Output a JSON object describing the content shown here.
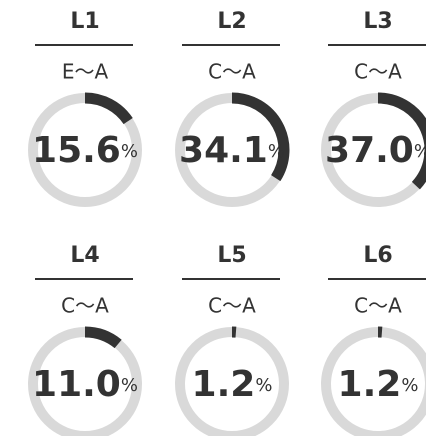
{
  "gauges": [
    {
      "label": "L1",
      "range": "E～A",
      "value": 15.6,
      "unit": "%"
    },
    {
      "label": "L2",
      "range": "C～A",
      "value": 34.1,
      "unit": "%"
    },
    {
      "label": "L3",
      "range": "C～A",
      "value": 37,
      "value_label": "37.0",
      "unit": "%"
    },
    {
      "label": "L4",
      "range": "C～A",
      "value": 11,
      "value_label": "11.0",
      "unit": "%"
    },
    {
      "label": "L5",
      "range": "C～A",
      "value": 1.2,
      "unit": "%"
    },
    {
      "label": "L6",
      "range": "C～A",
      "value": 1.2,
      "unit": "%"
    }
  ]
}
